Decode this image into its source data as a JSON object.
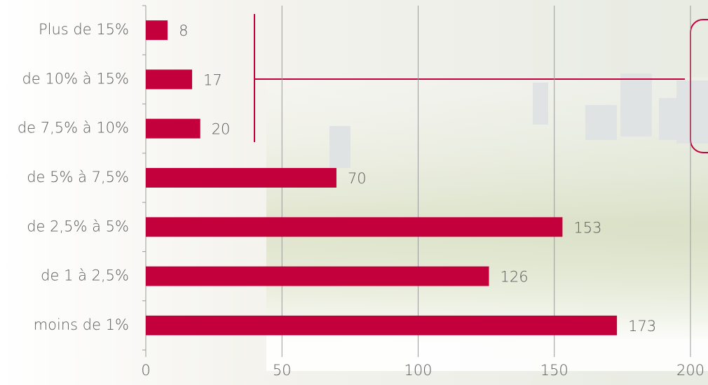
{
  "chart_data": {
    "type": "bar",
    "orientation": "horizontal",
    "categories": [
      "Plus de 15%",
      "de 10% à 15%",
      "de 7,5% à 10%",
      "de 5% à 7,5%",
      "de 2,5% à 5%",
      "de 1 à 2,5%",
      "moins de 1%"
    ],
    "values": [
      8,
      17,
      20,
      70,
      153,
      126,
      173
    ],
    "color": "#c4003c",
    "xlim": [
      0,
      200
    ],
    "xticks": [
      0,
      50,
      100,
      150,
      200
    ],
    "grid": true
  }
}
